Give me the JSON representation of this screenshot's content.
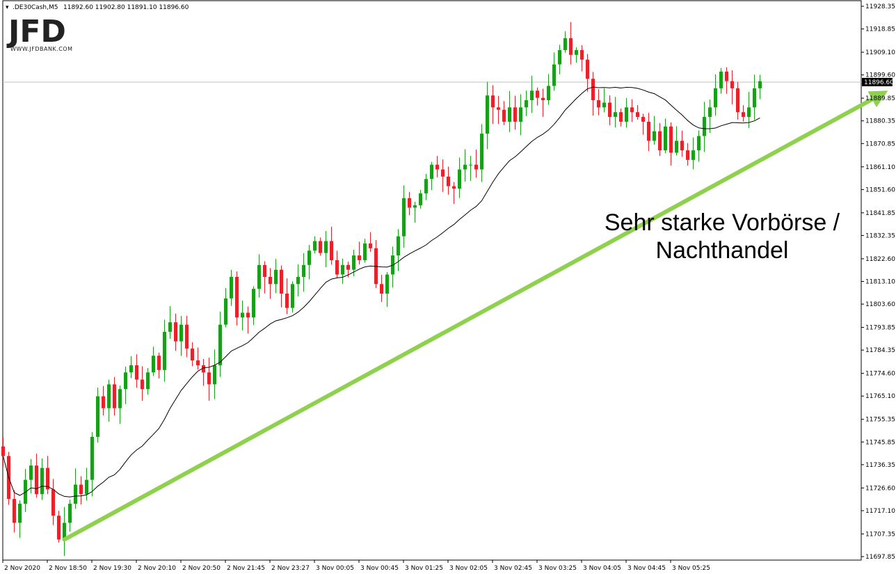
{
  "header": {
    "symbol": ".DE30Cash,M5",
    "ohlc": "11892.60 11902.80 11891.10 11896.60"
  },
  "logo": {
    "mark": "JFD",
    "tagline": "WWW.JFDBANK.COM"
  },
  "annotation": {
    "line1": "Sehr starke Vorbörse /",
    "line2": "Nachthandel"
  },
  "colors": {
    "bull": "#1a9f1a",
    "bear": "#e8222b",
    "ma": "#000000",
    "arrow": "#8fd14f",
    "price_line": "#c0c0c0",
    "grid": "#000000"
  },
  "chart_data": {
    "type": "candlestick",
    "symbol": ".DE30Cash,M5",
    "current_price": 11896.6,
    "ylim": [
      11697.85,
      11928.35
    ],
    "y_ticks": [
      11928.35,
      11918.85,
      11909.1,
      11899.6,
      11889.85,
      11880.35,
      11870.85,
      11861.1,
      11851.6,
      11841.85,
      11832.35,
      11822.6,
      11813.1,
      11803.6,
      11793.85,
      11784.35,
      11774.6,
      11765.1,
      11755.35,
      11745.85,
      11736.35,
      11726.6,
      11717.1,
      11707.35,
      11697.85
    ],
    "x_ticks": [
      "2 Nov 2020",
      "2 Nov 18:50",
      "2 Nov 19:30",
      "2 Nov 20:10",
      "2 Nov 20:50",
      "2 Nov 21:45",
      "2 Nov 23:27",
      "3 Nov 00:05",
      "3 Nov 00:45",
      "3 Nov 01:25",
      "3 Nov 02:05",
      "3 Nov 02:45",
      "3 Nov 03:25",
      "3 Nov 04:05",
      "3 Nov 04:45",
      "3 Nov 05:25"
    ],
    "close": [
      11740,
      11722,
      11712,
      11720,
      11730,
      11736,
      11724,
      11735,
      11726,
      11715,
      11705,
      11712,
      11720,
      11728,
      11724,
      11730,
      11748,
      11765,
      11760,
      11770,
      11760,
      11768,
      11775,
      11778,
      11772,
      11768,
      11775,
      11782,
      11776,
      11792,
      11796,
      11788,
      11795,
      11785,
      11780,
      11778,
      11775,
      11770,
      11778,
      11795,
      11806,
      11815,
      11798,
      11800,
      11798,
      11810,
      11820,
      11815,
      11812,
      11818,
      11808,
      11802,
      11812,
      11815,
      11820,
      11826,
      11830,
      11825,
      11830,
      11822,
      11816,
      11820,
      11818,
      11824,
      11822,
      11829,
      11827,
      11812,
      11808,
      11816,
      11824,
      11832,
      11848,
      11844,
      11845,
      11850,
      11856,
      11862,
      11860,
      11857,
      11853,
      11852,
      11860,
      11862,
      11862,
      11860,
      11875,
      11891,
      11886,
      11885,
      11880,
      11886,
      11880,
      11886,
      11889,
      11893,
      11890,
      11889,
      11895,
      11904,
      11910,
      11915,
      11908,
      11910,
      11906,
      11898,
      11889,
      11886,
      11888,
      11882,
      11884,
      11880,
      11886,
      11884,
      11882,
      11880,
      11872,
      11876,
      11868,
      11878,
      11867,
      11872,
      11868,
      11864,
      11868,
      11874,
      11882,
      11886,
      11894,
      11901,
      11897,
      11894,
      11884,
      11882,
      11886,
      11894,
      11897
    ],
    "ma_period_note": "",
    "arrow": {
      "from": {
        "bar": 11,
        "price": 11705
      },
      "to": {
        "bar": 159,
        "price": 11893
      }
    }
  }
}
